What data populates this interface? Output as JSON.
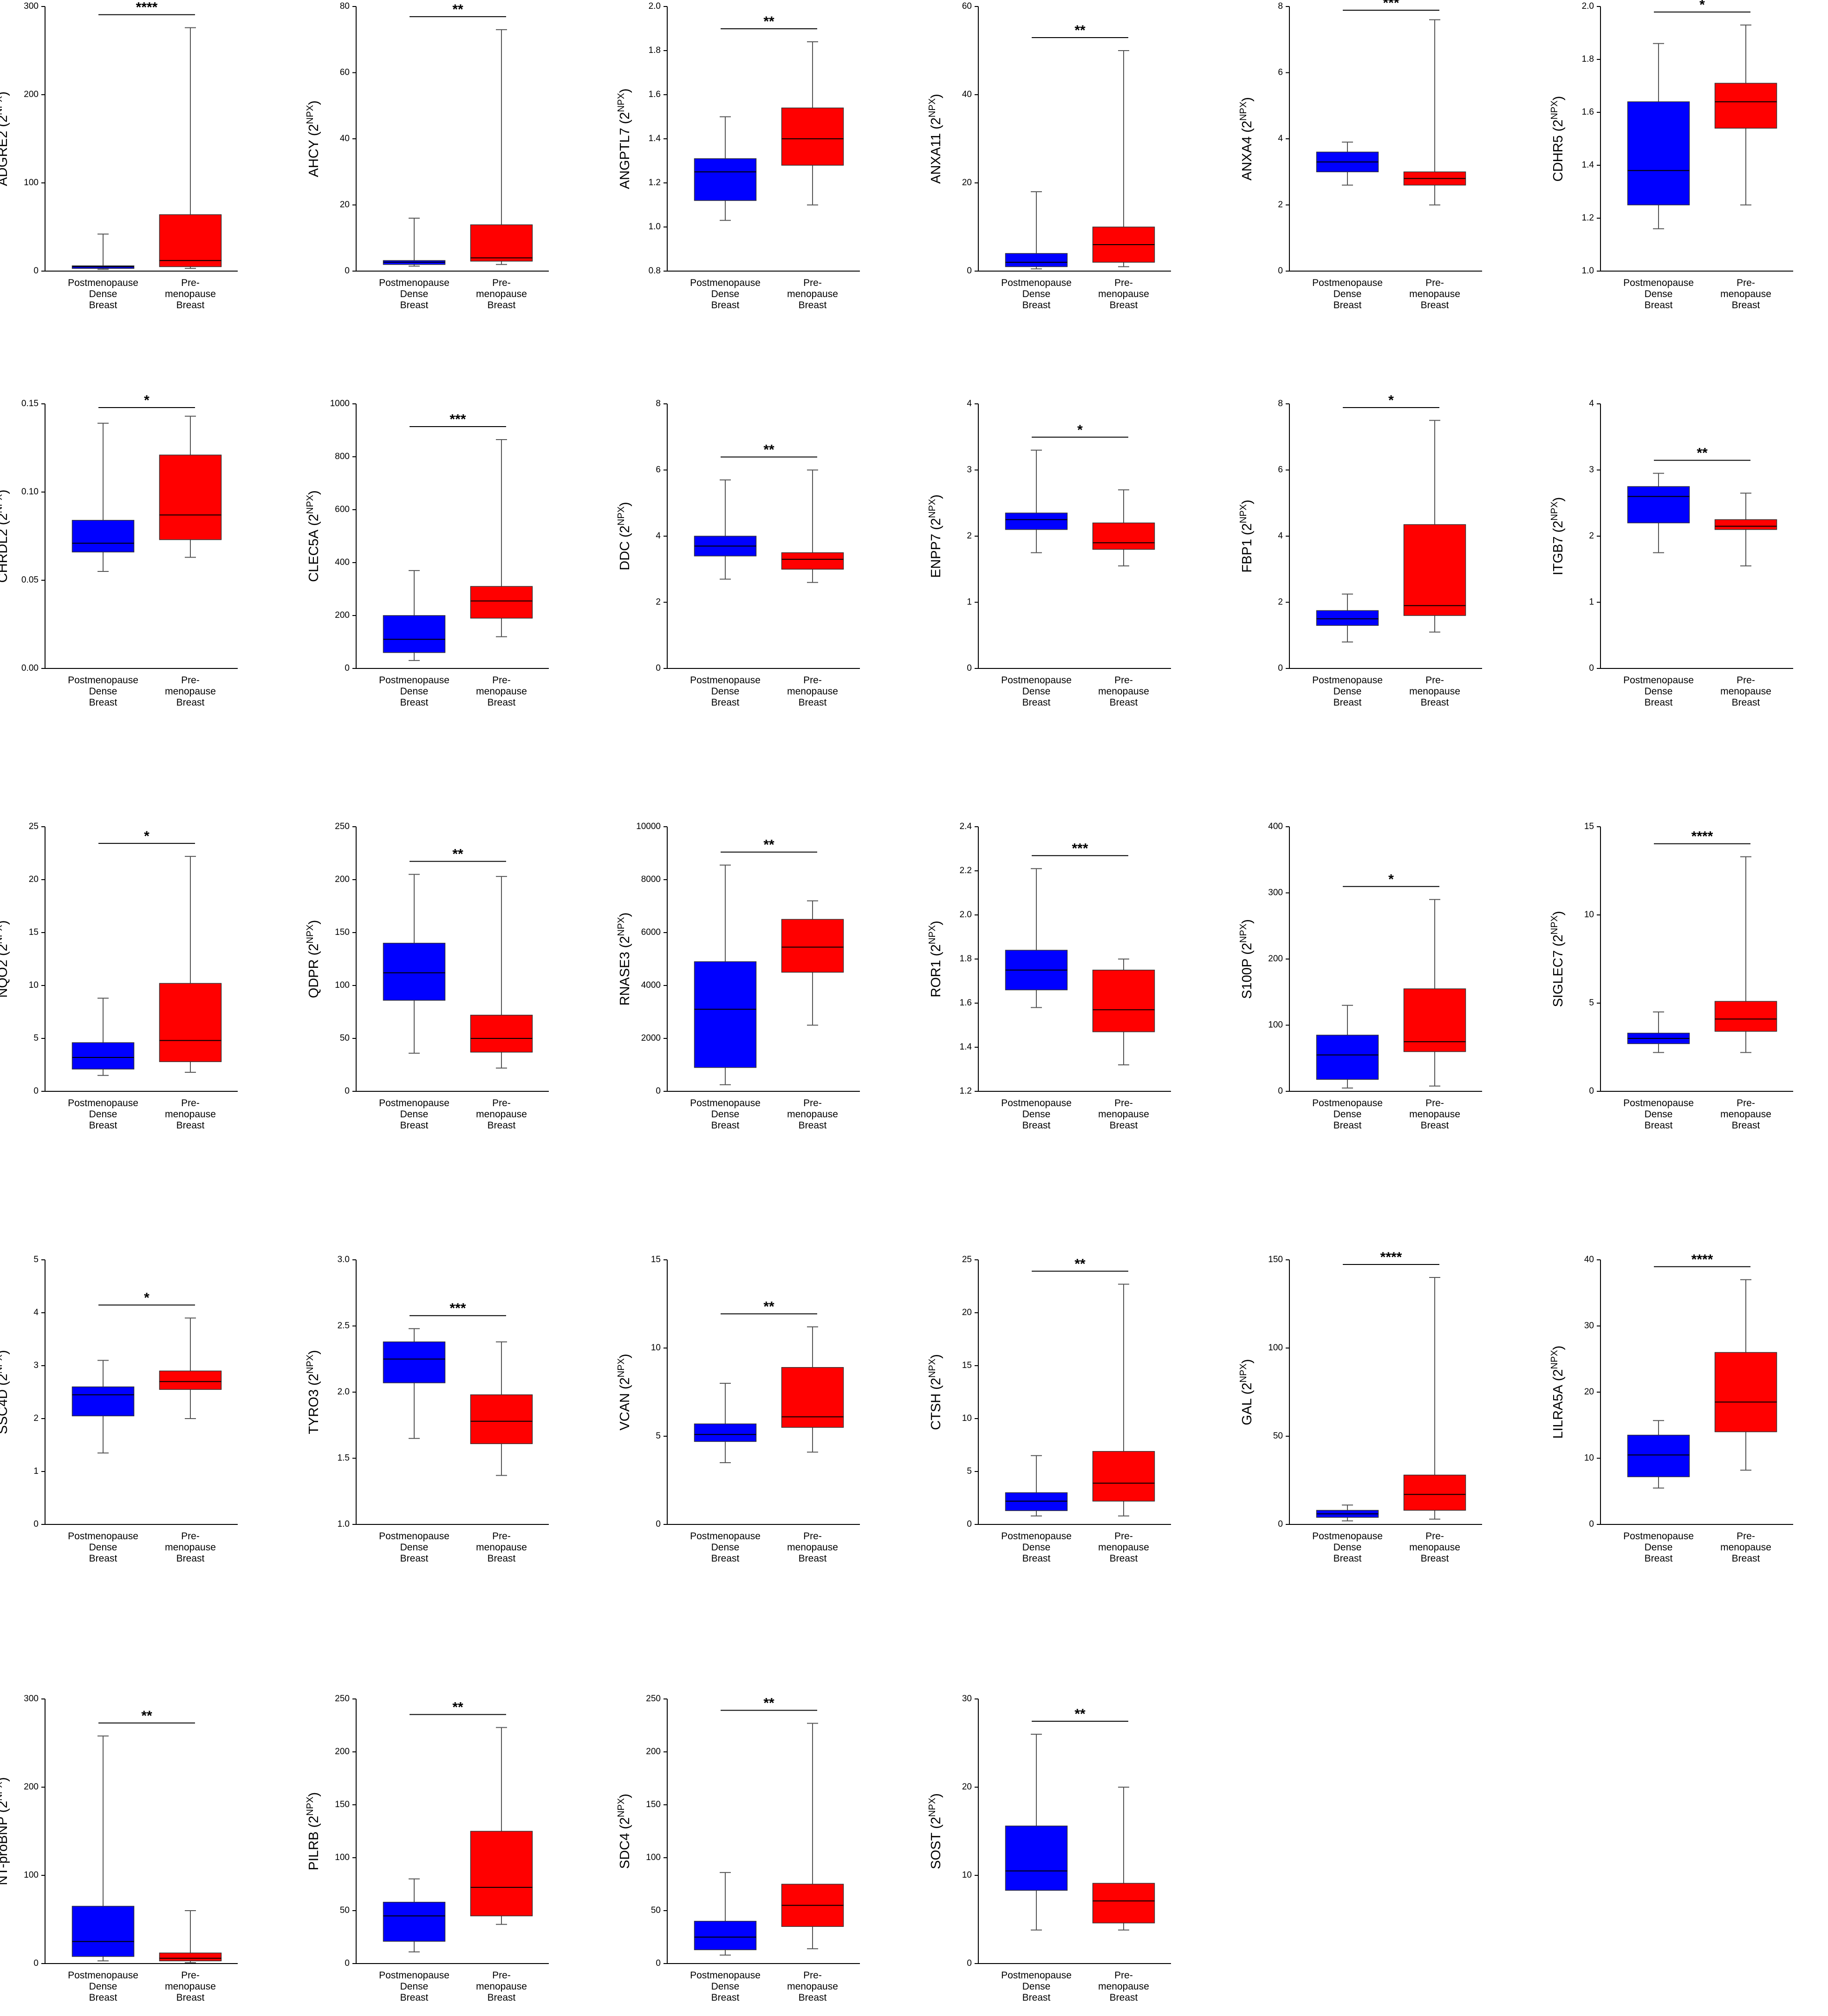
{
  "unit": {
    "open": "(2",
    "exponent": "NPX",
    "close": ")"
  },
  "categories": [
    [
      "Postmenopause",
      "Dense",
      "Breast"
    ],
    [
      "Pre-",
      "menopause",
      "Breast"
    ]
  ],
  "chart_data": [
    {
      "type": "box",
      "ylabel": "ADGRE2",
      "significance": "****",
      "ylim": [
        0,
        300
      ],
      "yticks": [
        0,
        100,
        200,
        300
      ],
      "boxes": [
        {
          "color": "#0000ff",
          "min": 2,
          "q1": 3,
          "median": 5,
          "q3": 6,
          "max": 42
        },
        {
          "color": "#ff0000",
          "min": 3,
          "q1": 5,
          "median": 12,
          "q3": 64,
          "max": 276
        }
      ]
    },
    {
      "type": "box",
      "ylabel": "AHCY",
      "significance": "**",
      "ylim": [
        0,
        80
      ],
      "yticks": [
        0,
        20,
        40,
        60,
        80
      ],
      "boxes": [
        {
          "color": "#0000ff",
          "min": 1.5,
          "q1": 2,
          "median": 2.7,
          "q3": 3.2,
          "max": 16
        },
        {
          "color": "#ff0000",
          "min": 2,
          "q1": 3,
          "median": 4,
          "q3": 14,
          "max": 73
        }
      ]
    },
    {
      "type": "box",
      "ylabel": "ANGPTL7",
      "significance": "**",
      "ylim": [
        0.8,
        2
      ],
      "yticks": [
        0.8,
        {
          "value": 1,
          "label": "1.0"
        },
        1.2,
        1.4,
        1.6,
        1.8,
        {
          "value": 2,
          "label": "2.0"
        }
      ],
      "boxes": [
        {
          "color": "#0000ff",
          "min": 1.03,
          "q1": 1.12,
          "median": 1.25,
          "q3": 1.31,
          "max": 1.5
        },
        {
          "color": "#ff0000",
          "min": 1.1,
          "q1": 1.28,
          "median": 1.4,
          "q3": 1.54,
          "max": 1.84
        }
      ]
    },
    {
      "type": "box",
      "ylabel": "ANXA11",
      "significance": "**",
      "ylim": [
        0,
        60
      ],
      "yticks": [
        0,
        20,
        40,
        60
      ],
      "boxes": [
        {
          "color": "#0000ff",
          "min": 0.5,
          "q1": 1,
          "median": 2,
          "q3": 4,
          "max": 18
        },
        {
          "color": "#ff0000",
          "min": 1,
          "q1": 2,
          "median": 6,
          "q3": 10,
          "max": 50
        }
      ]
    },
    {
      "type": "box",
      "ylabel": "ANXA4",
      "significance": "***",
      "ylim": [
        0,
        8
      ],
      "yticks": [
        0,
        2,
        4,
        6,
        8
      ],
      "boxes": [
        {
          "color": "#0000ff",
          "min": 2.6,
          "q1": 3,
          "median": 3.3,
          "q3": 3.6,
          "max": 3.9
        },
        {
          "color": "#ff0000",
          "min": 2,
          "q1": 2.6,
          "median": 2.8,
          "q3": 3,
          "max": 7.6
        }
      ]
    },
    {
      "type": "box",
      "ylabel": "CDHR5",
      "significance": "*",
      "ylim": [
        1,
        2
      ],
      "yticks": [
        {
          "value": 1,
          "label": "1.0"
        },
        1.2,
        1.4,
        1.6,
        1.8,
        {
          "value": 2,
          "label": "2.0"
        }
      ],
      "boxes": [
        {
          "color": "#0000ff",
          "min": 1.16,
          "q1": 1.25,
          "median": 1.38,
          "q3": 1.64,
          "max": 1.86
        },
        {
          "color": "#ff0000",
          "min": 1.25,
          "q1": 1.54,
          "median": 1.64,
          "q3": 1.71,
          "max": 1.93
        }
      ]
    },
    {
      "type": "box",
      "ylabel": "CHRDL2",
      "significance": "*",
      "ylim": [
        0,
        0.15
      ],
      "yticks": [
        {
          "value": 0,
          "label": "0.00"
        },
        0.05,
        {
          "value": 0.1,
          "label": "0.10"
        },
        0.15
      ],
      "boxes": [
        {
          "color": "#0000ff",
          "min": 0.055,
          "q1": 0.066,
          "median": 0.071,
          "q3": 0.084,
          "max": 0.139
        },
        {
          "color": "#ff0000",
          "min": 0.063,
          "q1": 0.073,
          "median": 0.087,
          "q3": 0.121,
          "max": 0.143
        }
      ]
    },
    {
      "type": "box",
      "ylabel": "CLEC5A",
      "significance": "***",
      "ylim": [
        0,
        1000
      ],
      "yticks": [
        0,
        200,
        400,
        600,
        800,
        1000
      ],
      "boxes": [
        {
          "color": "#0000ff",
          "min": 30,
          "q1": 60,
          "median": 110,
          "q3": 200,
          "max": 370
        },
        {
          "color": "#ff0000",
          "min": 120,
          "q1": 190,
          "median": 255,
          "q3": 310,
          "max": 865
        }
      ]
    },
    {
      "type": "box",
      "ylabel": "DDC",
      "significance": "**",
      "ylim": [
        0,
        8
      ],
      "yticks": [
        0,
        2,
        4,
        6,
        8
      ],
      "boxes": [
        {
          "color": "#0000ff",
          "min": 2.7,
          "q1": 3.4,
          "median": 3.7,
          "q3": 4,
          "max": 5.7
        },
        {
          "color": "#ff0000",
          "min": 2.6,
          "q1": 3,
          "median": 3.3,
          "q3": 3.5,
          "max": 6
        }
      ]
    },
    {
      "type": "box",
      "ylabel": "ENPP7",
      "significance": "*",
      "ylim": [
        0,
        4
      ],
      "yticks": [
        0,
        1,
        2,
        3,
        4
      ],
      "boxes": [
        {
          "color": "#0000ff",
          "min": 1.75,
          "q1": 2.1,
          "median": 2.25,
          "q3": 2.35,
          "max": 3.3
        },
        {
          "color": "#ff0000",
          "min": 1.55,
          "q1": 1.8,
          "median": 1.9,
          "q3": 2.2,
          "max": 2.7
        }
      ]
    },
    {
      "type": "box",
      "ylabel": "FBP1",
      "significance": "*",
      "ylim": [
        0,
        8
      ],
      "yticks": [
        0,
        2,
        4,
        6,
        8
      ],
      "boxes": [
        {
          "color": "#0000ff",
          "min": 0.8,
          "q1": 1.3,
          "median": 1.5,
          "q3": 1.75,
          "max": 2.25
        },
        {
          "color": "#ff0000",
          "min": 1.1,
          "q1": 1.6,
          "median": 1.9,
          "q3": 4.35,
          "max": 7.5
        }
      ]
    },
    {
      "type": "box",
      "ylabel": "ITGB7",
      "significance": "**",
      "ylim": [
        0,
        4
      ],
      "yticks": [
        0,
        1,
        2,
        3,
        4
      ],
      "boxes": [
        {
          "color": "#0000ff",
          "min": 1.75,
          "q1": 2.2,
          "median": 2.6,
          "q3": 2.75,
          "max": 2.95
        },
        {
          "color": "#ff0000",
          "min": 1.55,
          "q1": 2.1,
          "median": 2.15,
          "q3": 2.25,
          "max": 2.65
        }
      ]
    },
    {
      "type": "box",
      "ylabel": "NQO2",
      "significance": "*",
      "ylim": [
        0,
        25
      ],
      "yticks": [
        0,
        5,
        10,
        15,
        20,
        25
      ],
      "boxes": [
        {
          "color": "#0000ff",
          "min": 1.5,
          "q1": 2.1,
          "median": 3.2,
          "q3": 4.6,
          "max": 8.8
        },
        {
          "color": "#ff0000",
          "min": 1.8,
          "q1": 2.8,
          "median": 4.8,
          "q3": 10.2,
          "max": 22.2
        }
      ]
    },
    {
      "type": "box",
      "ylabel": "QDPR",
      "significance": "**",
      "ylim": [
        0,
        250
      ],
      "yticks": [
        0,
        50,
        100,
        150,
        200,
        250
      ],
      "boxes": [
        {
          "color": "#0000ff",
          "min": 36,
          "q1": 86,
          "median": 112,
          "q3": 140,
          "max": 205
        },
        {
          "color": "#ff0000",
          "min": 22,
          "q1": 37,
          "median": 50,
          "q3": 72,
          "max": 203
        }
      ]
    },
    {
      "type": "box",
      "ylabel": "RNASE3",
      "significance": "**",
      "ylim": [
        0,
        10000
      ],
      "yticks": [
        0,
        2000,
        4000,
        6000,
        8000,
        10000
      ],
      "boxes": [
        {
          "color": "#0000ff",
          "min": 250,
          "q1": 900,
          "median": 3100,
          "q3": 4900,
          "max": 8550
        },
        {
          "color": "#ff0000",
          "min": 2500,
          "q1": 4500,
          "median": 5450,
          "q3": 6500,
          "max": 7200
        }
      ]
    },
    {
      "type": "box",
      "ylabel": "ROR1",
      "significance": "***",
      "ylim": [
        1.2,
        2.4
      ],
      "yticks": [
        1.2,
        1.4,
        1.6,
        1.8,
        {
          "value": 2,
          "label": "2.0"
        },
        2.2,
        2.4
      ],
      "boxes": [
        {
          "color": "#0000ff",
          "min": 1.58,
          "q1": 1.66,
          "median": 1.75,
          "q3": 1.84,
          "max": 2.21
        },
        {
          "color": "#ff0000",
          "min": 1.32,
          "q1": 1.47,
          "median": 1.57,
          "q3": 1.75,
          "max": 1.8
        }
      ]
    },
    {
      "type": "box",
      "ylabel": "S100P",
      "significance": "*",
      "ylim": [
        0,
        400
      ],
      "yticks": [
        0,
        100,
        200,
        300,
        400
      ],
      "boxes": [
        {
          "color": "#0000ff",
          "min": 5,
          "q1": 18,
          "median": 55,
          "q3": 85,
          "max": 130
        },
        {
          "color": "#ff0000",
          "min": 8,
          "q1": 60,
          "median": 75,
          "q3": 155,
          "max": 290
        }
      ]
    },
    {
      "type": "box",
      "ylabel": "SIGLEC7",
      "significance": "****",
      "ylim": [
        0,
        15
      ],
      "yticks": [
        0,
        5,
        10,
        15
      ],
      "boxes": [
        {
          "color": "#0000ff",
          "min": 2.2,
          "q1": 2.7,
          "median": 3,
          "q3": 3.3,
          "max": 4.5
        },
        {
          "color": "#ff0000",
          "min": 2.2,
          "q1": 3.4,
          "median": 4.1,
          "q3": 5.1,
          "max": 13.3
        }
      ]
    },
    {
      "type": "box",
      "ylabel": "SSC4D",
      "significance": "*",
      "ylim": [
        0,
        5
      ],
      "yticks": [
        0,
        1,
        2,
        3,
        4,
        5
      ],
      "boxes": [
        {
          "color": "#0000ff",
          "min": 1.35,
          "q1": 2.05,
          "median": 2.45,
          "q3": 2.6,
          "max": 3.1
        },
        {
          "color": "#ff0000",
          "min": 2,
          "q1": 2.55,
          "median": 2.7,
          "q3": 2.9,
          "max": 3.9
        }
      ]
    },
    {
      "type": "box",
      "ylabel": "TYRO3",
      "significance": "***",
      "ylim": [
        1,
        3
      ],
      "yticks": [
        {
          "value": 1,
          "label": "1.0"
        },
        1.5,
        {
          "value": 2,
          "label": "2.0"
        },
        2.5,
        {
          "value": 3,
          "label": "3.0"
        }
      ],
      "boxes": [
        {
          "color": "#0000ff",
          "min": 1.65,
          "q1": 2.07,
          "median": 2.25,
          "q3": 2.38,
          "max": 2.48
        },
        {
          "color": "#ff0000",
          "min": 1.37,
          "q1": 1.61,
          "median": 1.78,
          "q3": 1.98,
          "max": 2.38
        }
      ]
    },
    {
      "type": "box",
      "ylabel": "VCAN",
      "significance": "**",
      "ylim": [
        0,
        15
      ],
      "yticks": [
        0,
        5,
        10,
        15
      ],
      "boxes": [
        {
          "color": "#0000ff",
          "min": 3.5,
          "q1": 4.7,
          "median": 5.1,
          "q3": 5.7,
          "max": 8
        },
        {
          "color": "#ff0000",
          "min": 4.1,
          "q1": 5.5,
          "median": 6.1,
          "q3": 8.9,
          "max": 11.2
        }
      ]
    },
    {
      "type": "box",
      "ylabel": "CTSH",
      "significance": "**",
      "ylim": [
        0,
        25
      ],
      "yticks": [
        0,
        5,
        10,
        15,
        20,
        25
      ],
      "boxes": [
        {
          "color": "#0000ff",
          "min": 0.8,
          "q1": 1.3,
          "median": 2.2,
          "q3": 3,
          "max": 6.5
        },
        {
          "color": "#ff0000",
          "min": 0.8,
          "q1": 2.2,
          "median": 3.9,
          "q3": 6.9,
          "max": 22.7
        }
      ]
    },
    {
      "type": "box",
      "ylabel": "GAL",
      "significance": "****",
      "ylim": [
        0,
        150
      ],
      "yticks": [
        0,
        50,
        100,
        150
      ],
      "boxes": [
        {
          "color": "#0000ff",
          "min": 2,
          "q1": 4,
          "median": 6,
          "q3": 8,
          "max": 11
        },
        {
          "color": "#ff0000",
          "min": 3,
          "q1": 8,
          "median": 17,
          "q3": 28,
          "max": 140
        }
      ]
    },
    {
      "type": "box",
      "ylabel": "LILRA5A",
      "significance": "****",
      "ylim": [
        0,
        40
      ],
      "yticks": [
        0,
        10,
        20,
        30,
        40
      ],
      "boxes": [
        {
          "color": "#0000ff",
          "min": 5.5,
          "q1": 7.2,
          "median": 10.5,
          "q3": 13.5,
          "max": 15.7
        },
        {
          "color": "#ff0000",
          "min": 8.2,
          "q1": 14,
          "median": 18.5,
          "q3": 26,
          "max": 37
        }
      ]
    },
    {
      "type": "box",
      "ylabel": "NT-proBNP",
      "significance": "**",
      "ylim": [
        0,
        300
      ],
      "yticks": [
        0,
        100,
        200,
        300
      ],
      "boxes": [
        {
          "color": "#0000ff",
          "min": 3,
          "q1": 8,
          "median": 25,
          "q3": 65,
          "max": 258
        },
        {
          "color": "#ff0000",
          "min": 1,
          "q1": 3,
          "median": 6,
          "q3": 12,
          "max": 60
        }
      ]
    },
    {
      "type": "box",
      "ylabel": "PILRB",
      "significance": "**",
      "ylim": [
        0,
        250
      ],
      "yticks": [
        0,
        50,
        100,
        150,
        200,
        250
      ],
      "boxes": [
        {
          "color": "#0000ff",
          "min": 11,
          "q1": 21,
          "median": 45,
          "q3": 58,
          "max": 80
        },
        {
          "color": "#ff0000",
          "min": 37,
          "q1": 45,
          "median": 72,
          "q3": 125,
          "max": 223
        }
      ]
    },
    {
      "type": "box",
      "ylabel": "SDC4",
      "significance": "**",
      "ylim": [
        0,
        250
      ],
      "yticks": [
        0,
        50,
        100,
        150,
        200,
        250
      ],
      "boxes": [
        {
          "color": "#0000ff",
          "min": 8,
          "q1": 13,
          "median": 25,
          "q3": 40,
          "max": 86
        },
        {
          "color": "#ff0000",
          "min": 14,
          "q1": 35,
          "median": 55,
          "q3": 75,
          "max": 227
        }
      ]
    },
    {
      "type": "box",
      "ylabel": "SOST",
      "significance": "**",
      "ylim": [
        0,
        30
      ],
      "yticks": [
        0,
        10,
        20,
        30
      ],
      "boxes": [
        {
          "color": "#0000ff",
          "min": 3.8,
          "q1": 8.3,
          "median": 10.5,
          "q3": 15.6,
          "max": 26
        },
        {
          "color": "#ff0000",
          "min": 3.8,
          "q1": 4.6,
          "median": 7.1,
          "q3": 9.1,
          "max": 20
        }
      ]
    }
  ]
}
